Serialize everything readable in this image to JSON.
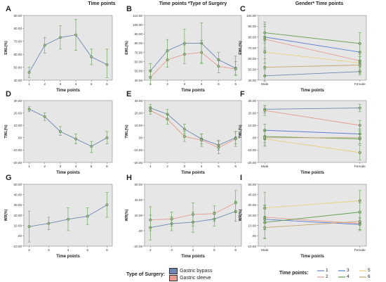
{
  "column_titles": [
    "Time points",
    "Time points *Type of Surgery",
    "Gender* Time points"
  ],
  "colors": {
    "plot_bg": "#e6e6e6",
    "single": "#6f86b3",
    "bypass": "#6f86b3",
    "sleeve": "#e89a8f",
    "ci": "#5ca04a",
    "marker_fill": "#9fbf8a",
    "tp1": "#6f86b3",
    "tp2": "#e89a8f",
    "tp3": "#5b7fd0",
    "tp4": "#5ca04a",
    "tp5": "#e8cf7a",
    "tp6": "#c8a46e"
  },
  "legend_surgery": {
    "title": "Type of Surgery:",
    "items": [
      {
        "label": "Gastric bypass",
        "color": "#6f86b3"
      },
      {
        "label": "Gastric sleeve",
        "color": "#e89a8f"
      }
    ]
  },
  "legend_timepoints": {
    "title": "Time points:",
    "items": [
      {
        "label": "1",
        "color": "#6f86b3"
      },
      {
        "label": "2",
        "color": "#e89a8f"
      },
      {
        "label": "3",
        "color": "#5b7fd0"
      },
      {
        "label": "4",
        "color": "#5ca04a"
      },
      {
        "label": "5",
        "color": "#e8cf7a"
      },
      {
        "label": "6",
        "color": "#c8a46e"
      }
    ]
  },
  "chart_data": [
    {
      "panel": "A",
      "type": "line",
      "xlabel": "Time points",
      "ylabel": "EWL(%)",
      "x": [
        "1",
        "2",
        "3",
        "4",
        "5",
        "6"
      ],
      "ylim": [
        40,
        90
      ],
      "yticks": [
        "40.00",
        "50.00",
        "60.00",
        "70.00",
        "80.00",
        "90.00"
      ],
      "series": [
        {
          "color_key": "single",
          "values": [
            46,
            67,
            73,
            75,
            58,
            52
          ],
          "ci": [
            [
              42,
              50
            ],
            [
              61,
              73
            ],
            [
              64,
              82
            ],
            [
              63,
              87
            ],
            [
              52,
              64
            ],
            [
              42,
              64
            ]
          ]
        }
      ]
    },
    {
      "panel": "B",
      "type": "line",
      "xlabel": "Time points",
      "ylabel": "EWL(%)",
      "x": [
        "1",
        "2",
        "3",
        "4",
        "5",
        "6"
      ],
      "ylim": [
        40,
        110
      ],
      "yticks": [
        "40.00",
        "50.00",
        "60.00",
        "70.00",
        "80.00",
        "90.00",
        "100.00",
        "110.00"
      ],
      "series": [
        {
          "name": "Gastric bypass",
          "color_key": "bypass",
          "values": [
            50,
            72,
            80,
            80,
            62,
            53
          ],
          "ci": [
            [
              44,
              58
            ],
            [
              62,
              84
            ],
            [
              68,
              95
            ],
            [
              58,
              102
            ],
            [
              55,
              70
            ],
            [
              46,
              66
            ]
          ]
        },
        {
          "name": "Gastric sleeve",
          "color_key": "sleeve",
          "values": [
            43,
            62,
            68,
            70,
            55,
            52
          ],
          "ci": [
            [
              36,
              50
            ],
            [
              54,
              71
            ],
            [
              58,
              78
            ],
            [
              59,
              83
            ],
            [
              48,
              63
            ],
            [
              45,
              60
            ]
          ]
        }
      ]
    },
    {
      "panel": "C",
      "type": "line",
      "xlabel": "Time points",
      "ylabel": "EWL(%)",
      "x": [
        "Male",
        "Female"
      ],
      "ylim": [
        40,
        100
      ],
      "yticks": [
        "40.00",
        "50.00",
        "60.00",
        "70.00",
        "80.00",
        "90.00",
        "100.00"
      ],
      "series": [
        {
          "name": "1",
          "color_key": "tp1",
          "values": [
            44,
            48
          ],
          "ci": [
            [
              39,
              50
            ],
            [
              45,
              52
            ]
          ]
        },
        {
          "name": "2",
          "color_key": "tp2",
          "values": [
            78,
            58
          ],
          "ci": [
            [
              68,
              92
            ],
            [
              52,
              66
            ]
          ]
        },
        {
          "name": "3",
          "color_key": "tp3",
          "values": [
            80,
            66
          ],
          "ci": [
            [
              70,
              90
            ],
            [
              58,
              74
            ]
          ]
        },
        {
          "name": "4",
          "color_key": "tp4",
          "values": [
            84,
            74
          ],
          "ci": [
            [
              74,
              94
            ],
            [
              64,
              84
            ]
          ]
        },
        {
          "name": "5",
          "color_key": "tp5",
          "values": [
            66,
            56
          ],
          "ci": [
            [
              56,
              76
            ],
            [
              50,
              62
            ]
          ]
        },
        {
          "name": "6",
          "color_key": "tp6",
          "values": [
            52,
            54
          ],
          "ci": [
            [
              44,
              60
            ],
            [
              46,
              62
            ]
          ]
        }
      ]
    },
    {
      "panel": "D",
      "type": "line",
      "xlabel": "Time points",
      "ylabel": "TWL(%)",
      "x": [
        "1",
        "2",
        "3",
        "4",
        "5",
        "6"
      ],
      "ylim": [
        -20,
        30
      ],
      "yticks": [
        "-20.00",
        "-10.00",
        ".00",
        "10.00",
        "20.00",
        "30.00"
      ],
      "series": [
        {
          "color_key": "single",
          "values": [
            23,
            17,
            5,
            -1,
            -7,
            0
          ],
          "ci": [
            [
              21,
              25
            ],
            [
              14,
              20
            ],
            [
              2,
              9
            ],
            [
              -5,
              3
            ],
            [
              -12,
              -3
            ],
            [
              -5,
              5
            ]
          ]
        }
      ]
    },
    {
      "panel": "E",
      "type": "line",
      "xlabel": "Time points",
      "ylabel": "TWL(%)",
      "x": [
        "1",
        "2",
        "3",
        "4",
        "5",
        "6"
      ],
      "ylim": [
        -20,
        30
      ],
      "yticks": [
        "-20.00",
        "-10.00",
        ".00",
        "10.00",
        "20.00",
        "30.00"
      ],
      "series": [
        {
          "name": "Gastric bypass",
          "color_key": "bypass",
          "values": [
            24,
            19,
            7,
            -1,
            -6,
            0
          ],
          "ci": [
            [
              21,
              27
            ],
            [
              15,
              23
            ],
            [
              3,
              11
            ],
            [
              -5,
              3
            ],
            [
              -10,
              -2
            ],
            [
              -5,
              5
            ]
          ]
        },
        {
          "name": "Gastric sleeve",
          "color_key": "sleeve",
          "values": [
            22,
            15,
            1,
            -2,
            -8,
            -1
          ],
          "ci": [
            [
              19,
              25
            ],
            [
              11,
              19
            ],
            [
              -3,
              5
            ],
            [
              -7,
              3
            ],
            [
              -13,
              -3
            ],
            [
              -7,
              5
            ]
          ]
        }
      ]
    },
    {
      "panel": "F",
      "type": "line",
      "xlabel": "Time points",
      "ylabel": "TWL(%)",
      "x": [
        "Male",
        "Female"
      ],
      "ylim": [
        -20,
        30
      ],
      "yticks": [
        "-20.00",
        "-10.00",
        ".00",
        "10.00",
        "20.00",
        "30.00"
      ],
      "series": [
        {
          "name": "1",
          "color_key": "tp1",
          "values": [
            23,
            24
          ],
          "ci": [
            [
              20,
              26
            ],
            [
              21,
              27
            ]
          ]
        },
        {
          "name": "2",
          "color_key": "tp2",
          "values": [
            22,
            10
          ],
          "ci": [
            [
              18,
              26
            ],
            [
              6,
              14
            ]
          ]
        },
        {
          "name": "3",
          "color_key": "tp3",
          "values": [
            6,
            3
          ],
          "ci": [
            [
              1,
              11
            ],
            [
              -1,
              7
            ]
          ]
        },
        {
          "name": "4",
          "color_key": "tp4",
          "values": [
            1,
            -1
          ],
          "ci": [
            [
              -4,
              6
            ],
            [
              -5,
              3
            ]
          ]
        },
        {
          "name": "5",
          "color_key": "tp5",
          "values": [
            -1,
            -12
          ],
          "ci": [
            [
              -7,
              5
            ],
            [
              -18,
              -6
            ]
          ]
        },
        {
          "name": "6",
          "color_key": "tp6",
          "values": [
            0,
            0
          ],
          "ci": [
            [
              -6,
              6
            ],
            [
              -5,
              5
            ]
          ]
        }
      ]
    },
    {
      "panel": "G",
      "type": "line",
      "xlabel": "Time points",
      "ylabel": "WR(%)",
      "x": [
        "2",
        "3",
        "4",
        "5",
        "6"
      ],
      "ylim": [
        -10,
        50
      ],
      "yticks": [
        "-10.00",
        ".00",
        "10.00",
        "20.00",
        "30.00",
        "40.00",
        "50.00"
      ],
      "series": [
        {
          "color_key": "single",
          "values": [
            9,
            12,
            16,
            19,
            30
          ],
          "ci": [
            [
              -6,
              24
            ],
            [
              6,
              18
            ],
            [
              5,
              27
            ],
            [
              11,
              27
            ],
            [
              18,
              42
            ]
          ]
        }
      ]
    },
    {
      "panel": "H",
      "type": "line",
      "xlabel": "Time points",
      "ylabel": "WR(%)",
      "x": [
        "2",
        "3",
        "4",
        "5",
        "6"
      ],
      "ylim": [
        -20,
        60
      ],
      "yticks": [
        "-20.00",
        ".00",
        "20.00",
        "40.00",
        "60.00"
      ],
      "series": [
        {
          "name": "Gastric bypass",
          "color_key": "bypass",
          "values": [
            4,
            9,
            11,
            15,
            25
          ],
          "ci": [
            [
              -12,
              20
            ],
            [
              0,
              18
            ],
            [
              -2,
              24
            ],
            [
              6,
              24
            ],
            [
              12,
              38
            ]
          ]
        },
        {
          "name": "Gastric sleeve",
          "color_key": "sleeve",
          "values": [
            14,
            15,
            21,
            22,
            36
          ],
          "ci": [
            [
              0,
              31
            ],
            [
              6,
              24
            ],
            [
              6,
              36
            ],
            [
              12,
              32
            ],
            [
              23,
              52
            ]
          ]
        }
      ]
    },
    {
      "panel": "I",
      "type": "line",
      "xlabel": "Time points",
      "ylabel": "WR(%)",
      "x": [
        "Male",
        "Female"
      ],
      "ylim": [
        -10,
        50
      ],
      "yticks": [
        "-10.00",
        ".00",
        "10.00",
        "20.00",
        "30.00",
        "40.00",
        "50.00"
      ],
      "series": [
        {
          "name": "2",
          "color_key": "tp2",
          "values": [
            18,
            12
          ],
          "ci": [
            [
              6,
              30
            ],
            [
              6,
              18
            ]
          ]
        },
        {
          "name": "3",
          "color_key": "tp3",
          "values": [
            16,
            11
          ],
          "ci": [
            [
              6,
              26
            ],
            [
              5,
              17
            ]
          ]
        },
        {
          "name": "4",
          "color_key": "tp4",
          "values": [
            13,
            23
          ],
          "ci": [
            [
              -3,
              29
            ],
            [
              14,
              32
            ]
          ]
        },
        {
          "name": "5",
          "color_key": "tp5",
          "values": [
            27,
            34
          ],
          "ci": [
            [
              12,
              42
            ],
            [
              24,
              44
            ]
          ]
        },
        {
          "name": "6",
          "color_key": "tp6",
          "values": [
            8,
            14
          ],
          "ci": [
            [
              -2,
              18
            ],
            [
              6,
              22
            ]
          ]
        }
      ]
    }
  ]
}
